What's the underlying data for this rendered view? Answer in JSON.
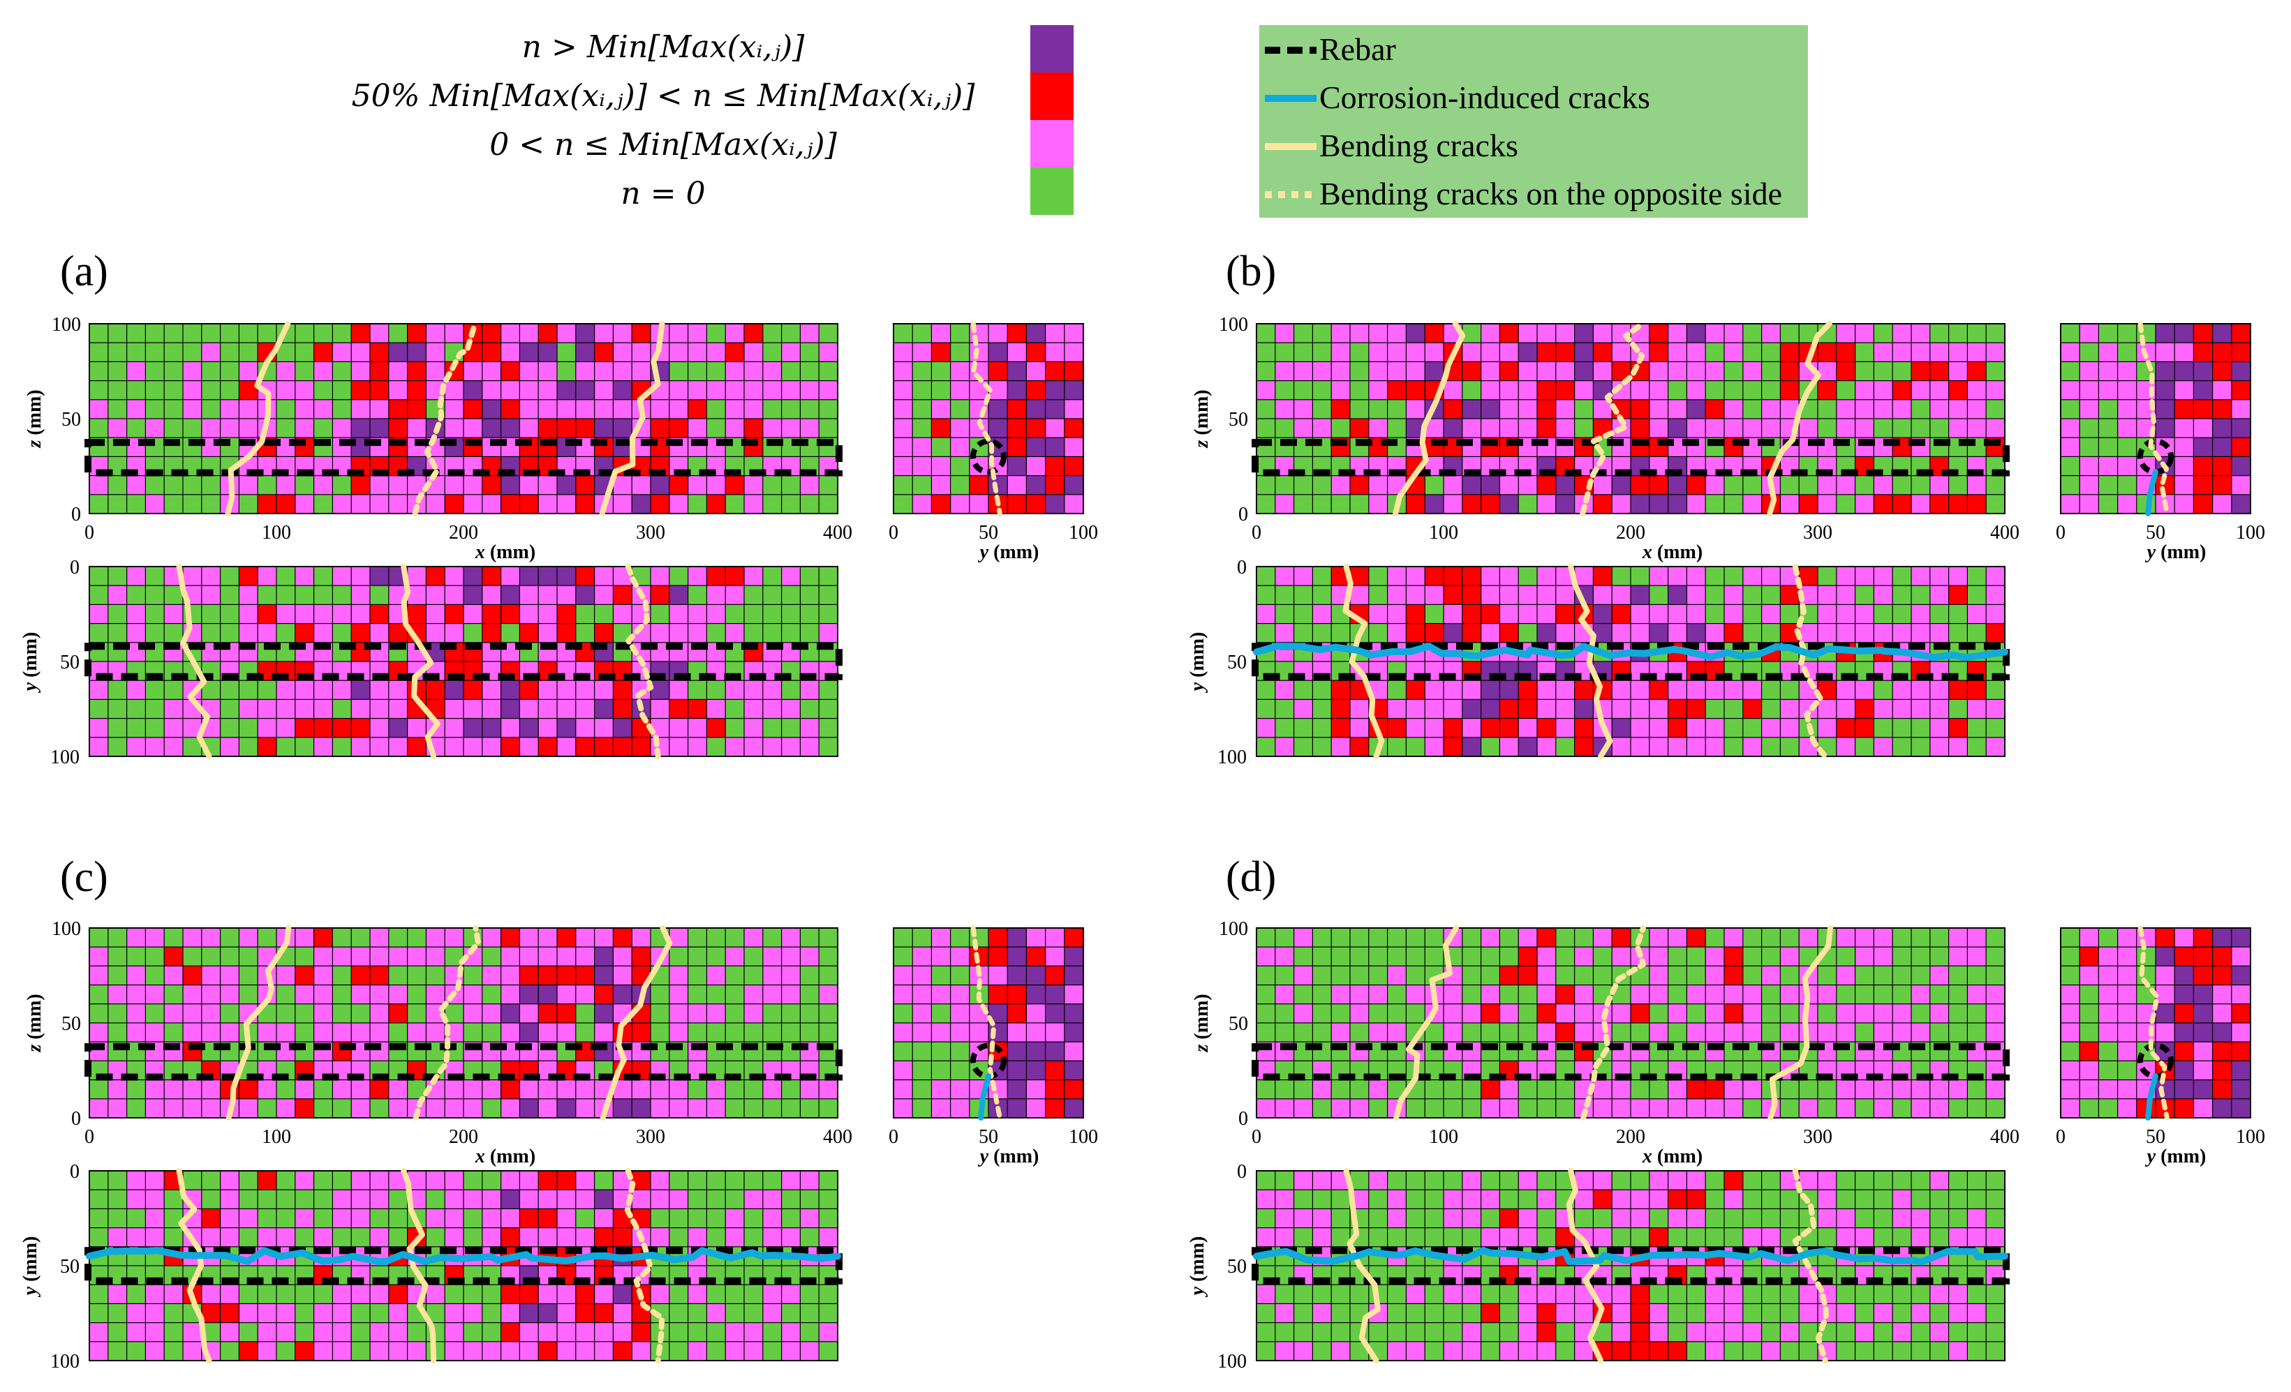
{
  "legend_conditions": [
    {
      "text": "n > Min[Max(xᵢ,ⱼ)]",
      "color": "#7b2fa0"
    },
    {
      "text": "50% Min[Max(xᵢ,ⱼ)] < n ≤ Min[Max(xᵢ,ⱼ)]",
      "color": "#ff0000"
    },
    {
      "text": "0 < n ≤ Min[Max(xᵢ,ⱼ)]",
      "color": "#ff66ff"
    },
    {
      "text": "n = 0",
      "color": "#66cc44"
    }
  ],
  "legend_lines": [
    {
      "label": "Rebar",
      "color": "#000000",
      "style": "dashed"
    },
    {
      "label": "Corrosion-induced cracks",
      "color": "#11aadd",
      "style": "solid"
    },
    {
      "label": "Bending cracks",
      "color": "#fde5a0",
      "style": "solid"
    },
    {
      "label": "Bending cracks on the opposite side",
      "color": "#fde5a0",
      "style": "dotted"
    }
  ],
  "chart_data": [
    {
      "panel": "(a)",
      "type": "heatmap",
      "corrosion_cracks": false,
      "views": [
        {
          "name": "side",
          "xlabel": "x (mm)",
          "ylabel": "z (mm)",
          "xlim": [
            0,
            400
          ],
          "ylim": [
            0,
            100
          ],
          "xticks": [
            "0",
            "100",
            "200",
            "300",
            "400"
          ],
          "yticks": [
            "100",
            "50",
            "0"
          ]
        },
        {
          "name": "end",
          "xlabel": "y (mm)",
          "ylabel": "",
          "xlim": [
            0,
            100
          ],
          "ylim": [
            0,
            100
          ],
          "xticks": [
            "0",
            "50",
            "100"
          ],
          "yticks": []
        },
        {
          "name": "top",
          "xlabel": "",
          "ylabel": "y (mm)",
          "xlim": [
            0,
            400
          ],
          "ylim": [
            0,
            100
          ],
          "xticks": [],
          "yticks": [
            "0",
            "50",
            "100"
          ]
        }
      ]
    },
    {
      "panel": "(b)",
      "type": "heatmap",
      "corrosion_cracks": true,
      "views": [
        {
          "name": "side",
          "xlabel": "x (mm)",
          "ylabel": "z (mm)",
          "xlim": [
            0,
            400
          ],
          "ylim": [
            0,
            100
          ],
          "xticks": [
            "0",
            "100",
            "200",
            "300",
            "400"
          ],
          "yticks": [
            "100",
            "50",
            "0"
          ]
        },
        {
          "name": "end",
          "xlabel": "y (mm)",
          "ylabel": "",
          "xlim": [
            0,
            100
          ],
          "ylim": [
            0,
            100
          ],
          "xticks": [
            "0",
            "50",
            "100"
          ],
          "yticks": []
        },
        {
          "name": "top",
          "xlabel": "",
          "ylabel": "y (mm)",
          "xlim": [
            0,
            400
          ],
          "ylim": [
            0,
            100
          ],
          "xticks": [],
          "yticks": [
            "0",
            "50",
            "100"
          ]
        }
      ]
    },
    {
      "panel": "(c)",
      "type": "heatmap",
      "corrosion_cracks": true,
      "views": [
        {
          "name": "side",
          "xlabel": "x (mm)",
          "ylabel": "z (mm)",
          "xlim": [
            0,
            400
          ],
          "ylim": [
            0,
            100
          ],
          "xticks": [
            "0",
            "100",
            "200",
            "300",
            "400"
          ],
          "yticks": [
            "100",
            "50",
            "0"
          ]
        },
        {
          "name": "end",
          "xlabel": "y (mm)",
          "ylabel": "",
          "xlim": [
            0,
            100
          ],
          "ylim": [
            0,
            100
          ],
          "xticks": [
            "0",
            "50",
            "100"
          ],
          "yticks": []
        },
        {
          "name": "top",
          "xlabel": "",
          "ylabel": "y (mm)",
          "xlim": [
            0,
            400
          ],
          "ylim": [
            0,
            100
          ],
          "xticks": [],
          "yticks": [
            "0",
            "50",
            "100"
          ]
        }
      ]
    },
    {
      "panel": "(d)",
      "type": "heatmap",
      "corrosion_cracks": true,
      "views": [
        {
          "name": "side",
          "xlabel": "x (mm)",
          "ylabel": "z (mm)",
          "xlim": [
            0,
            400
          ],
          "ylim": [
            0,
            100
          ],
          "xticks": [
            "0",
            "100",
            "200",
            "300",
            "400"
          ],
          "yticks": [
            "100",
            "50",
            "0"
          ]
        },
        {
          "name": "end",
          "xlabel": "y (mm)",
          "ylabel": "",
          "xlim": [
            0,
            100
          ],
          "ylim": [
            0,
            100
          ],
          "xticks": [
            "0",
            "50",
            "100"
          ],
          "yticks": []
        },
        {
          "name": "top",
          "xlabel": "",
          "ylabel": "y (mm)",
          "xlim": [
            0,
            400
          ],
          "ylim": [
            0,
            100
          ],
          "xticks": [],
          "yticks": [
            "0",
            "50",
            "100"
          ]
        }
      ]
    }
  ],
  "palette": {
    "purple": "#7b2fa0",
    "red": "#ff0000",
    "pink": "#ff66ff",
    "green": "#66cc44",
    "crack_blue": "#11aadd",
    "crack_cream": "#fde5a0"
  }
}
